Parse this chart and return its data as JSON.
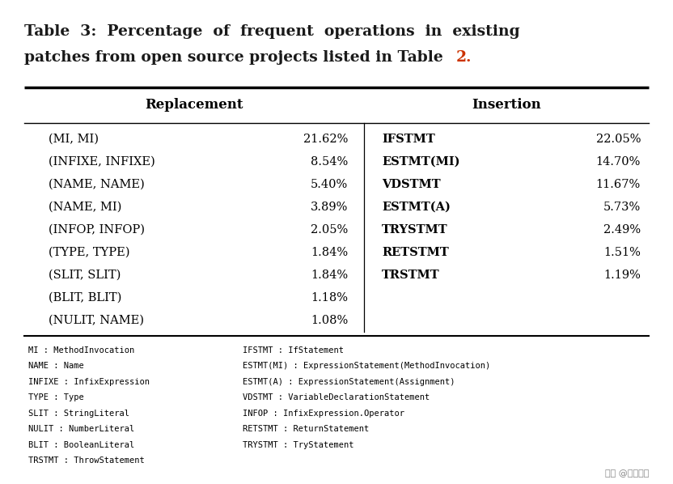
{
  "title_line1": "Table  3:  Percentage  of  frequent  operations  in  existing",
  "title_line2_main": "patches from open source projects listed in Table ",
  "title_line2_num": "2.",
  "bg_color": "#ffffff",
  "header_replacement": "Replacement",
  "header_insertion": "Insertion",
  "replacement_rows": [
    [
      "(MI, MI)",
      "21.62%"
    ],
    [
      "(INFIXE, INFIXE)",
      "8.54%"
    ],
    [
      "(NAME, NAME)",
      "5.40%"
    ],
    [
      "(NAME, MI)",
      "3.89%"
    ],
    [
      "(INFOP, INFOP)",
      "2.05%"
    ],
    [
      "(TYPE, TYPE)",
      "1.84%"
    ],
    [
      "(SLIT, SLIT)",
      "1.84%"
    ],
    [
      "(BLIT, BLIT)",
      "1.18%"
    ],
    [
      "(NULIT, NAME)",
      "1.08%"
    ]
  ],
  "insertion_rows": [
    [
      "IFSTMT",
      "22.05%"
    ],
    [
      "ESTMT(MI)",
      "14.70%"
    ],
    [
      "VDSTMT",
      "11.67%"
    ],
    [
      "ESTMT(A)",
      "5.73%"
    ],
    [
      "TRYSTMT",
      "2.49%"
    ],
    [
      "RETSTMT",
      "1.51%"
    ],
    [
      "TRSTMT",
      "1.19%"
    ]
  ],
  "footnotes_left": [
    "MI : MethodInvocation",
    "NAME : Name",
    "INFIXE : InfixExpression",
    "TYPE : Type",
    "SLIT : StringLiteral",
    "NULIT : NumberLiteral",
    "BLIT : BooleanLiteral",
    "TRSTMT : ThrowStatement"
  ],
  "footnotes_right": [
    "IFSTMT : IfStatement",
    "ESTMT(MI) : ExpressionStatement(MethodInvocation)",
    "ESTMT(A) : ExpressionStatement(Assignment)",
    "VDSTMT : VariableDeclarationStatement",
    "INFOP : InfixExpression.Operator",
    "RETSTMT : ReturnStatement",
    "TRYSTMT : TryStatement",
    ""
  ],
  "watermark": "头条 @贾则科技",
  "title_color": "#1a1a1a",
  "num_color": "#cc3300"
}
